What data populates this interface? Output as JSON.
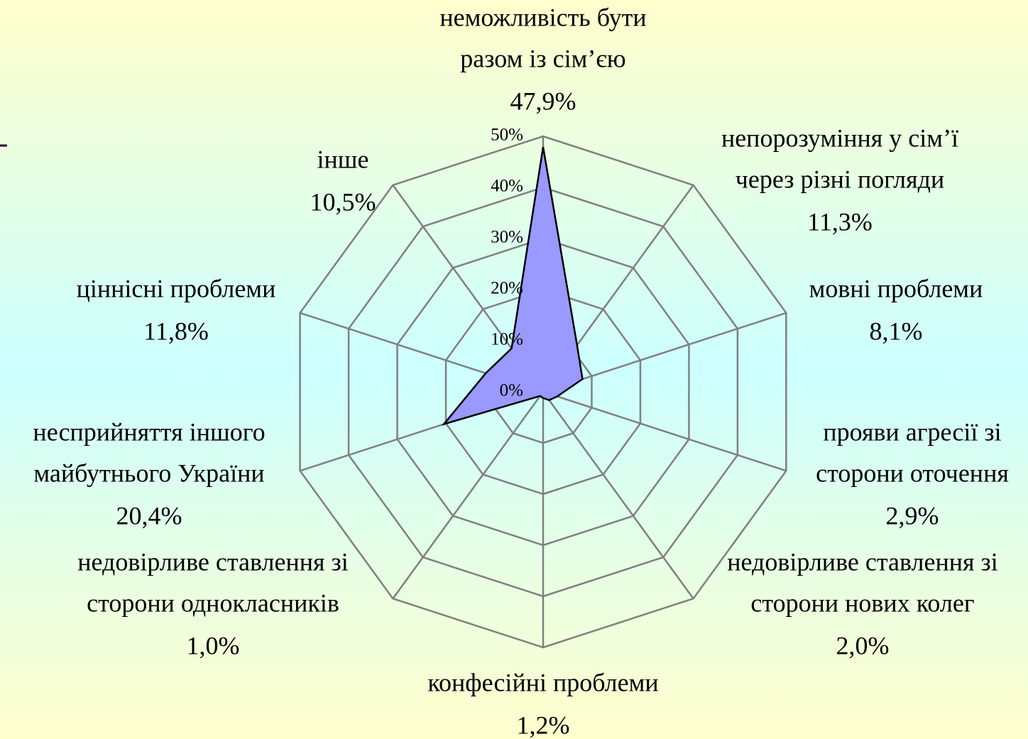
{
  "chart_data": {
    "type": "radar",
    "categories": [
      [
        "неможливість бути",
        "разом із сім’єю"
      ],
      [
        "непорозуміння у сім’ї",
        "через різні погляди"
      ],
      [
        "мовні проблеми"
      ],
      [
        "прояви агресії зі",
        "сторони оточення"
      ],
      [
        "недовірливе ставлення зі",
        "сторони нових колег"
      ],
      [
        "конфесійні проблеми"
      ],
      [
        "недовірливе ставлення зі",
        "сторони однокласників"
      ],
      [
        "несприйняття іншого",
        "майбутнього України"
      ],
      [
        "ціннісні проблеми"
      ],
      [
        "інше"
      ]
    ],
    "values": [
      47.9,
      11.3,
      8.1,
      2.9,
      2.0,
      1.2,
      1.0,
      20.4,
      11.8,
      10.5
    ],
    "value_labels": [
      "47,9%",
      "11,3%",
      "8,1%",
      "2,9%",
      "2,0%",
      "1,2%",
      "1,0%",
      "20,4%",
      "11,8%",
      "10,5%"
    ],
    "color": "#9999ff",
    "ylim": [
      0,
      50
    ],
    "yticks": [
      {
        "value": 0,
        "label": "0%"
      },
      {
        "value": 10,
        "label": "10%"
      },
      {
        "value": 20,
        "label": "20%"
      },
      {
        "value": 30,
        "label": "30%"
      },
      {
        "value": 40,
        "label": "40%"
      },
      {
        "value": 50,
        "label": "50%"
      }
    ],
    "grid": true
  }
}
